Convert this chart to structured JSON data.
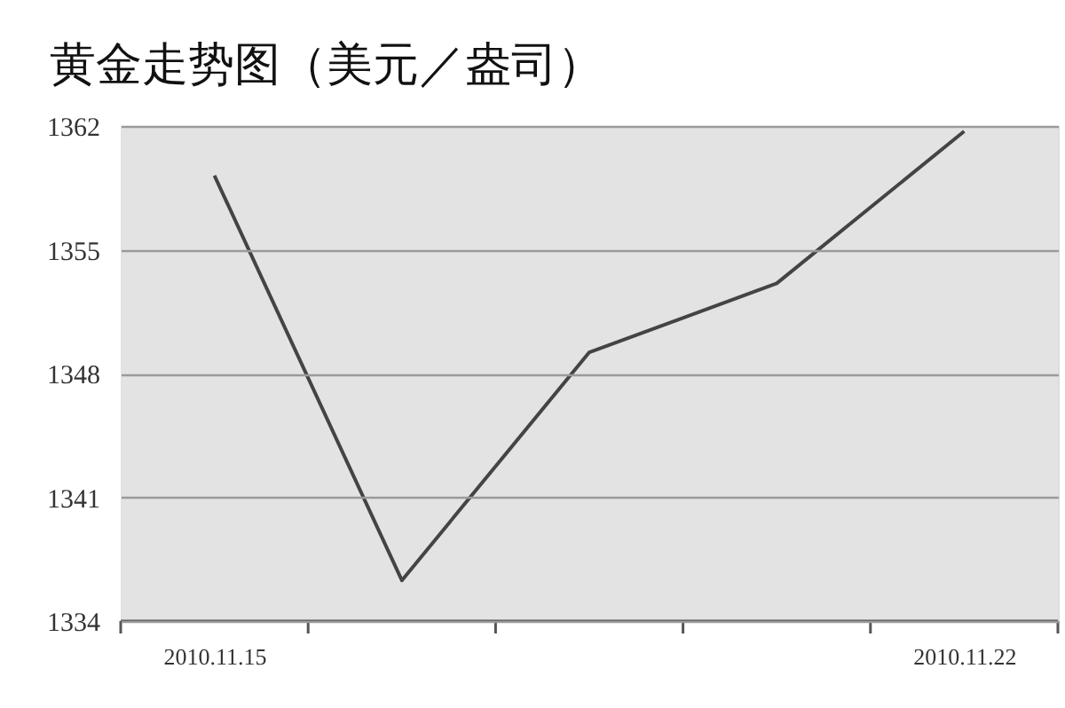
{
  "chart_data": {
    "type": "line",
    "title": "黄金走势图（美元／盎司）",
    "categories": [
      "2010.11.15",
      null,
      null,
      null,
      "2010.11.22"
    ],
    "series": [
      {
        "color": "#444444",
        "values": [
          1359.2,
          1336.3,
          1349.2,
          1353.1,
          1361.7
        ]
      }
    ],
    "ylim": [
      1334,
      1362
    ],
    "yticks": [
      1334,
      1341,
      1348,
      1355,
      1362
    ],
    "grid": "y",
    "legend": false,
    "marker": "none",
    "line_style": "solid"
  }
}
